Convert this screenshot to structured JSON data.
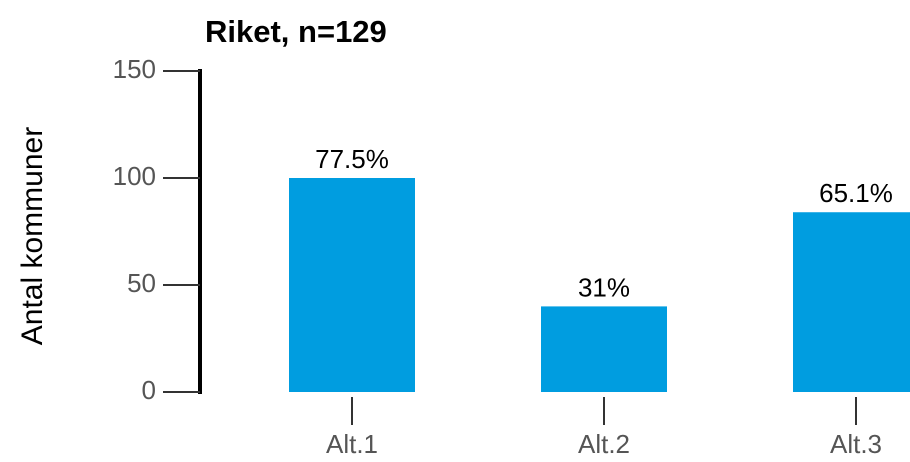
{
  "chart_data": {
    "type": "bar",
    "title": "Riket, n=129",
    "y_label": "Antal kommuner",
    "categories": [
      "Alt.1",
      "Alt.2",
      "Alt.3"
    ],
    "values": [
      100,
      40,
      84
    ],
    "value_labels": [
      "77.5%",
      "31%",
      "65.1%"
    ],
    "color": "#009de0",
    "ylim": [
      0,
      150
    ],
    "yticks": [
      0,
      50,
      100,
      150
    ],
    "grid": false
  }
}
